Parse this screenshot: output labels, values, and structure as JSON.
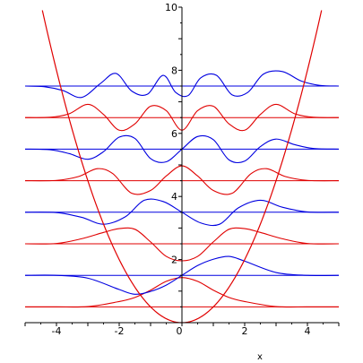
{
  "chart_data": {
    "type": "line",
    "title": "",
    "xlabel": "x",
    "ylabel": "",
    "xlim": [
      -5,
      5
    ],
    "ylim": [
      0,
      10
    ],
    "x_ticks": [
      -4,
      -2,
      0,
      2,
      4
    ],
    "y_ticks": [
      2,
      4,
      6,
      8,
      10
    ],
    "x_tick_labels": [
      "-4",
      "-2",
      "0",
      "2",
      "4"
    ],
    "y_tick_labels": [
      "2",
      "4",
      "6",
      "8",
      "10"
    ],
    "grid": false,
    "legend": "none",
    "potential": {
      "expression": "x^2/2",
      "color": "#e00000"
    },
    "colors": {
      "even_levels": "#e00000",
      "odd_levels": "#0000e0",
      "axes": "#000000"
    },
    "energy_levels": [
      0.5,
      1.5,
      2.5,
      3.5,
      4.5,
      5.5,
      6.5,
      7.5
    ],
    "wavefunction_scale": 1.8,
    "series": [
      {
        "n": 0,
        "baseline": 0.5,
        "x": [
          -5,
          -4,
          -3,
          -2,
          -1.5,
          -1,
          -0.5,
          0,
          0.5,
          1,
          1.5,
          2,
          3,
          4,
          5
        ],
        "y": [
          0.5,
          0.5,
          0.51,
          0.67,
          0.8,
          1.03,
          1.31,
          1.43,
          1.31,
          1.03,
          0.8,
          0.67,
          0.51,
          0.5,
          0.5
        ]
      },
      {
        "n": 1,
        "baseline": 1.5,
        "x": [
          -5,
          -4,
          -3,
          -2,
          -1.5,
          -1,
          -0.5,
          0,
          0.5,
          1,
          1.5,
          2,
          3,
          4,
          5
        ],
        "y": [
          1.5,
          1.5,
          1.41,
          1.05,
          0.9,
          0.99,
          1.19,
          1.5,
          1.81,
          2.01,
          2.1,
          1.95,
          1.59,
          1.5,
          1.5
        ]
      },
      {
        "n": 2,
        "baseline": 2.5,
        "x": [
          -5,
          -4,
          -3.2,
          -2.5,
          -2,
          -1.5,
          -1,
          -0.5,
          0,
          0.5,
          1,
          1.5,
          2,
          2.5,
          3.2,
          4,
          5
        ],
        "y": [
          2.5,
          2.51,
          2.66,
          2.86,
          2.98,
          2.96,
          2.56,
          2.1,
          1.96,
          2.1,
          2.56,
          2.96,
          2.98,
          2.86,
          2.66,
          2.51,
          2.5
        ]
      },
      {
        "n": 3,
        "baseline": 3.5,
        "x": [
          -5,
          -4,
          -3.2,
          -2.5,
          -1.8,
          -1.2,
          -0.6,
          0,
          0.6,
          1.2,
          1.8,
          2.5,
          3.2,
          4,
          5
        ],
        "y": [
          3.5,
          3.49,
          3.34,
          3.12,
          3.36,
          3.88,
          3.84,
          3.5,
          3.16,
          3.12,
          3.64,
          3.88,
          3.66,
          3.51,
          3.5
        ]
      },
      {
        "n": 4,
        "baseline": 4.5,
        "x": [
          -5,
          -4,
          -3.3,
          -2.7,
          -2.2,
          -1.6,
          -1,
          -0.5,
          0,
          0.5,
          1,
          1.6,
          2.2,
          2.7,
          3.3,
          4,
          5
        ],
        "y": [
          4.5,
          4.51,
          4.63,
          4.88,
          4.72,
          4.1,
          4.19,
          4.65,
          4.97,
          4.65,
          4.19,
          4.1,
          4.72,
          4.88,
          4.63,
          4.51,
          4.5
        ]
      },
      {
        "n": 5,
        "baseline": 5.5,
        "x": [
          -5,
          -4.2,
          -3.6,
          -3,
          -2.5,
          -2,
          -1.5,
          -1,
          -0.5,
          0,
          0.5,
          1,
          1.5,
          2,
          2.5,
          3,
          3.6,
          4.2,
          5
        ],
        "y": [
          5.5,
          5.48,
          5.36,
          5.18,
          5.42,
          5.88,
          5.84,
          5.2,
          5.1,
          5.5,
          5.9,
          5.8,
          5.16,
          5.12,
          5.58,
          5.82,
          5.64,
          5.52,
          5.5
        ]
      },
      {
        "n": 6,
        "baseline": 6.5,
        "x": [
          -5,
          -4.2,
          -3.6,
          -3,
          -2.5,
          -2,
          -1.5,
          -1,
          -0.5,
          0,
          0.5,
          1,
          1.5,
          2,
          2.5,
          3,
          3.6,
          4.2,
          5
        ],
        "y": [
          6.5,
          6.51,
          6.62,
          6.92,
          6.6,
          6.1,
          6.3,
          6.86,
          6.72,
          6.1,
          6.72,
          6.86,
          6.3,
          6.1,
          6.6,
          6.92,
          6.62,
          6.51,
          6.5
        ]
      },
      {
        "n": 7,
        "baseline": 7.5,
        "x": [
          -5,
          -4.4,
          -3.8,
          -3.2,
          -2.6,
          -2.1,
          -1.6,
          -1.1,
          -0.6,
          -0.2,
          0.2,
          0.6,
          1.1,
          1.6,
          2.1,
          2.6,
          3.2,
          3.8,
          4.4,
          5
        ],
        "y": [
          7.5,
          7.48,
          7.36,
          7.14,
          7.58,
          7.9,
          7.34,
          7.24,
          7.84,
          7.3,
          7.2,
          7.76,
          7.84,
          7.22,
          7.3,
          7.88,
          7.96,
          7.66,
          7.52,
          7.5
        ]
      }
    ]
  }
}
